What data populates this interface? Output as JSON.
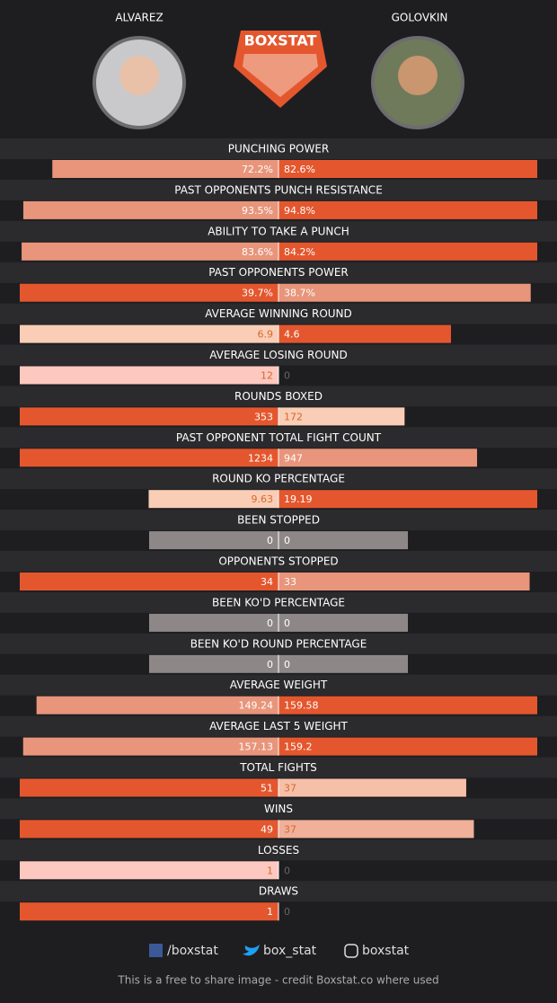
{
  "header": {
    "left_name": "ALVAREZ",
    "right_name": "GOLOVKIN",
    "logo": "BOXSTAT"
  },
  "chart_data": {
    "type": "butterfly-bar",
    "rows": [
      {
        "label": "PUNCHING POWER",
        "values": [
          72.2,
          82.6
        ],
        "value_labels": [
          "72.2%",
          "82.6%"
        ],
        "colors": [
          "#e8957b",
          "#e4572e"
        ]
      },
      {
        "label": "PAST OPPONENTS PUNCH RESISTANCE",
        "values": [
          93.5,
          94.8
        ],
        "value_labels": [
          "93.5%",
          "94.8%"
        ],
        "colors": [
          "#e8957b",
          "#e4572e"
        ]
      },
      {
        "label": "ABILITY TO TAKE A PUNCH",
        "values": [
          83.6,
          84.2
        ],
        "value_labels": [
          "83.6%",
          "84.2%"
        ],
        "colors": [
          "#e8957b",
          "#e4572e"
        ]
      },
      {
        "label": "PAST OPPONENTS POWER",
        "values": [
          39.7,
          38.7
        ],
        "value_labels": [
          "39.7%",
          "38.7%"
        ],
        "colors": [
          "#e4572e",
          "#e8957b"
        ]
      },
      {
        "label": "AVERAGE WINNING ROUND",
        "values": [
          6.9,
          4.6
        ],
        "colors": [
          "#f9cdb6",
          "#e4572e"
        ]
      },
      {
        "label": "AVERAGE LOSING ROUND",
        "values": [
          12,
          0
        ],
        "colors": [
          "#fcc8c0",
          "#fcc8c0"
        ]
      },
      {
        "label": "ROUNDS BOXED",
        "values": [
          353,
          172
        ],
        "colors": [
          "#e4572e",
          "#f9cdb6"
        ]
      },
      {
        "label": "PAST OPPONENT TOTAL FIGHT COUNT",
        "values": [
          1234,
          947
        ],
        "colors": [
          "#e4572e",
          "#e8957b"
        ]
      },
      {
        "label": "ROUND KO PERCENTAGE",
        "values": [
          9.63,
          19.19
        ],
        "colors": [
          "#f9cdb6",
          "#e4572e"
        ]
      },
      {
        "label": "BEEN STOPPED",
        "values": [
          0,
          0
        ],
        "colors": [
          "#8e8788",
          "#8e8788"
        ]
      },
      {
        "label": "OPPONENTS STOPPED",
        "values": [
          34,
          33
        ],
        "colors": [
          "#e4572e",
          "#e8957b"
        ]
      },
      {
        "label": "BEEN KO'D PERCENTAGE",
        "values": [
          0,
          0
        ],
        "colors": [
          "#8e8788",
          "#8e8788"
        ]
      },
      {
        "label": "BEEN KO'D ROUND PERCENTAGE",
        "values": [
          0,
          0
        ],
        "colors": [
          "#8e8788",
          "#8e8788"
        ]
      },
      {
        "label": "AVERAGE WEIGHT",
        "values": [
          149.24,
          159.58
        ],
        "colors": [
          "#e8957b",
          "#e4572e"
        ]
      },
      {
        "label": "AVERAGE LAST 5 WEIGHT",
        "values": [
          157.13,
          159.2
        ],
        "colors": [
          "#e8957b",
          "#e4572e"
        ]
      },
      {
        "label": "TOTAL FIGHTS",
        "values": [
          51,
          37
        ],
        "colors": [
          "#e4572e",
          "#f6c0a8"
        ]
      },
      {
        "label": "WINS",
        "values": [
          49,
          37
        ],
        "colors": [
          "#e4572e",
          "#f0b09a"
        ]
      },
      {
        "label": "LOSSES",
        "values": [
          1,
          0
        ],
        "colors": [
          "#fcc8c0",
          "#fcc8c0"
        ]
      },
      {
        "label": "DRAWS",
        "values": [
          1,
          0
        ],
        "colors": [
          "#e4572e",
          "#e4572e"
        ]
      }
    ]
  },
  "footer": {
    "facebook": "/boxstat",
    "twitter": "box_stat",
    "instagram": "boxstat",
    "credit": "This is a free to share image - credit Boxstat.co where used"
  }
}
